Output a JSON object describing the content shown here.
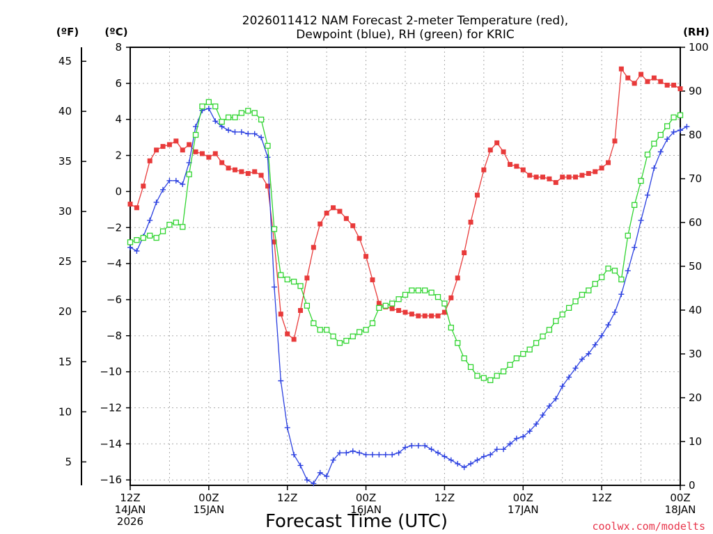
{
  "chart_data": {
    "type": "line",
    "title_lines": [
      "2026011412 NAM Forecast 2-meter Temperature (red),",
      "Dewpoint (blue), RH (green) for KRIC"
    ],
    "xlabel": "Forecast Time (UTC)",
    "credit": "coolwx.com/modelts",
    "units": {
      "fahrenheit": "(ºF)",
      "celsius": "(ºC)",
      "rh": "(RH)"
    },
    "x_range_hours": [
      0,
      84
    ],
    "x_ticks": [
      {
        "hour": 0,
        "lines": [
          "12Z",
          "14JAN",
          "2026"
        ]
      },
      {
        "hour": 12,
        "lines": [
          "00Z",
          "15JAN"
        ]
      },
      {
        "hour": 24,
        "lines": [
          "12Z"
        ]
      },
      {
        "hour": 36,
        "lines": [
          "00Z",
          "16JAN"
        ]
      },
      {
        "hour": 48,
        "lines": [
          "12Z"
        ]
      },
      {
        "hour": 60,
        "lines": [
          "00Z",
          "17JAN"
        ]
      },
      {
        "hour": 72,
        "lines": [
          "12Z"
        ]
      },
      {
        "hour": 84,
        "lines": [
          "00Z",
          "18JAN"
        ]
      }
    ],
    "celsius_axis": {
      "range": [
        -16.3,
        8
      ],
      "ticks": [
        8,
        6,
        4,
        2,
        0,
        -2,
        -4,
        -6,
        -8,
        -10,
        -12,
        -14,
        -16
      ]
    },
    "fahrenheit_axis": {
      "ticks": [
        45,
        40,
        35,
        30,
        25,
        20,
        15,
        10,
        5
      ]
    },
    "rh_axis": {
      "range": [
        0,
        100
      ],
      "ticks": [
        100,
        90,
        80,
        70,
        60,
        50,
        40,
        30,
        20,
        10,
        0
      ]
    },
    "grid": true,
    "series": [
      {
        "name": "Temperature",
        "unit": "C",
        "color": "#e83a3a",
        "marker": "filled-square",
        "values": [
          -0.7,
          -0.9,
          0.3,
          1.7,
          2.3,
          2.5,
          2.6,
          2.8,
          2.3,
          2.6,
          2.2,
          2.1,
          1.9,
          2.1,
          1.6,
          1.3,
          1.2,
          1.1,
          1.0,
          1.1,
          0.9,
          0.3,
          -2.8,
          -6.8,
          -7.9,
          -8.2,
          -6.6,
          -4.8,
          -3.1,
          -1.8,
          -1.2,
          -0.9,
          -1.1,
          -1.5,
          -1.9,
          -2.6,
          -3.6,
          -4.9,
          -6.2,
          -6.4,
          -6.5,
          -6.6,
          -6.7,
          -6.8,
          -6.9,
          -6.9,
          -6.9,
          -6.9,
          -6.7,
          -5.9,
          -4.8,
          -3.4,
          -1.7,
          -0.2,
          1.2,
          2.3,
          2.7,
          2.2,
          1.5,
          1.4,
          1.2,
          0.9,
          0.8,
          0.8,
          0.7,
          0.5,
          0.8,
          0.8,
          0.8,
          0.9,
          1.0,
          1.1,
          1.3,
          1.6,
          2.8,
          6.8,
          6.3,
          6.0,
          6.5,
          6.1,
          6.3,
          6.1,
          5.9,
          5.9,
          5.7
        ]
      },
      {
        "name": "Dewpoint",
        "unit": "C",
        "color": "#2a3fe0",
        "marker": "plus",
        "values": [
          -3.1,
          -3.3,
          -2.5,
          -1.6,
          -0.6,
          0.1,
          0.6,
          0.6,
          0.4,
          1.6,
          3.6,
          4.5,
          4.6,
          3.9,
          3.6,
          3.4,
          3.3,
          3.3,
          3.2,
          3.2,
          3.0,
          1.9,
          -5.3,
          -10.5,
          -13.1,
          -14.6,
          -15.2,
          -16.0,
          -16.2,
          -15.6,
          -15.8,
          -14.9,
          -14.5,
          -14.5,
          -14.4,
          -14.5,
          -14.6,
          -14.6,
          -14.6,
          -14.6,
          -14.6,
          -14.5,
          -14.2,
          -14.1,
          -14.1,
          -14.1,
          -14.3,
          -14.5,
          -14.7,
          -14.9,
          -15.1,
          -15.3,
          -15.1,
          -14.9,
          -14.7,
          -14.6,
          -14.3,
          -14.3,
          -14.0,
          -13.7,
          -13.6,
          -13.3,
          -12.9,
          -12.4,
          -11.9,
          -11.5,
          -10.8,
          -10.3,
          -9.8,
          -9.3,
          -9.0,
          -8.5,
          -8.0,
          -7.4,
          -6.7,
          -5.7,
          -4.4,
          -3.1,
          -1.6,
          -0.2,
          1.3,
          2.2,
          2.9,
          3.3,
          3.4,
          3.6
        ]
      },
      {
        "name": "RH",
        "unit": "%",
        "color": "#2fd42f",
        "marker": "open-square",
        "values": [
          55.5,
          56,
          56.5,
          57,
          56.5,
          58,
          59.5,
          60,
          59,
          71,
          80,
          86.5,
          87.5,
          86.5,
          83,
          84,
          84,
          85,
          85.5,
          85,
          83.5,
          77.5,
          58.5,
          48,
          47,
          46.5,
          45.5,
          41,
          37,
          35.5,
          35.5,
          34,
          32.5,
          33,
          34,
          35,
          35.5,
          37,
          40.5,
          41,
          41.5,
          42.5,
          43.5,
          44.5,
          44.5,
          44.5,
          44,
          43,
          41.5,
          36,
          32.5,
          29,
          27,
          25,
          24.5,
          24,
          25,
          26,
          27.5,
          29,
          30,
          31,
          32.5,
          34,
          35.5,
          37.5,
          39,
          40.5,
          42,
          43.5,
          44.5,
          46,
          47.5,
          49.5,
          49,
          47,
          57,
          64,
          69.5,
          75.5,
          78,
          80,
          82,
          84,
          84.5
        ]
      }
    ]
  }
}
